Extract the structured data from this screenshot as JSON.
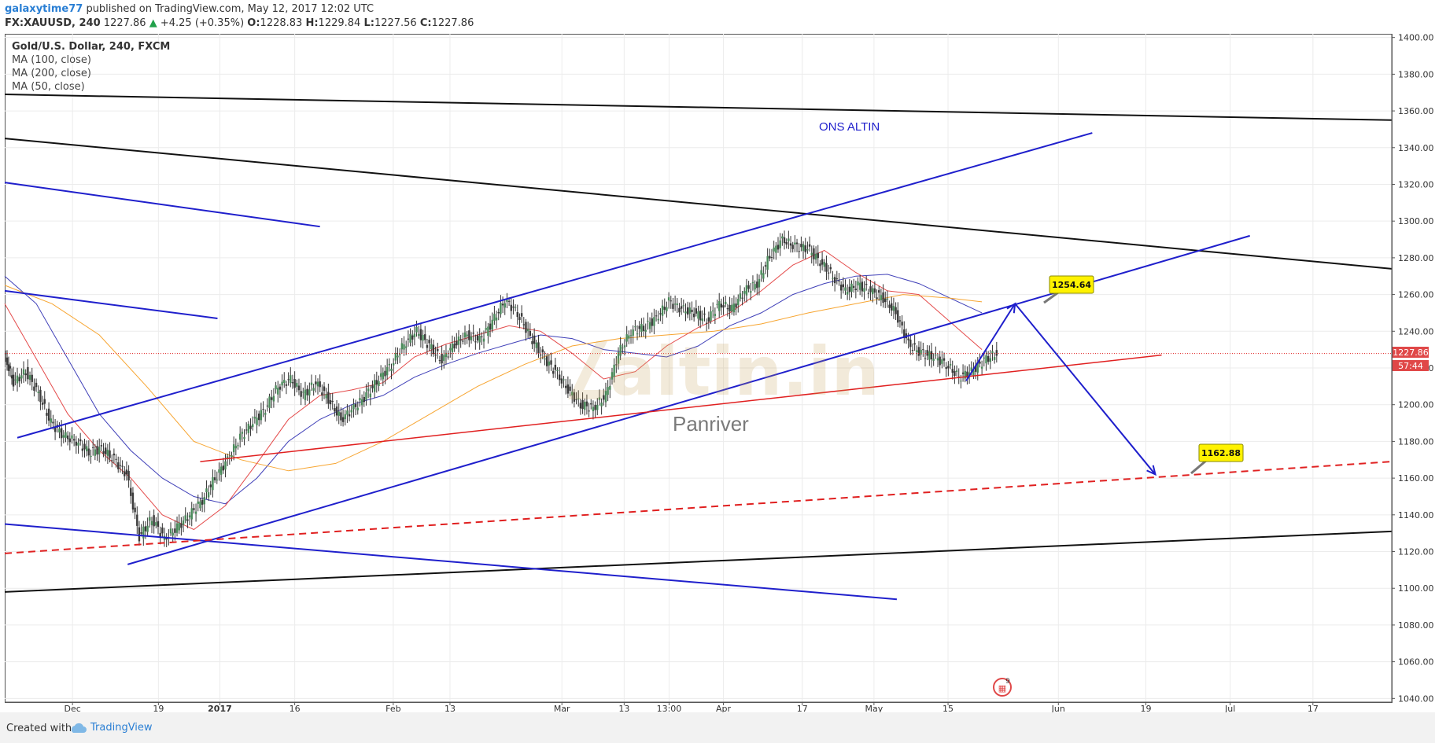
{
  "header": {
    "author": "galaxytime77",
    "published_text": "published on TradingView.com, May 12, 2017 12:02 UTC",
    "symbol": "FX:XAUUSD, 240",
    "last_price": "1227.86",
    "change_arrow": "▲",
    "change": "+4.25 (+0.35%)",
    "open_label": "O:",
    "open": "1228.83",
    "high_label": "H:",
    "high": "1229.84",
    "low_label": "L:",
    "low": "1227.56",
    "close_label": "C:",
    "close": "1227.86"
  },
  "legend": {
    "title": "Gold/U.S. Dollar, 240, FXCM",
    "ma1": "MA (100, close)",
    "ma2": "MA (200, close)",
    "ma3": "MA (50, close)"
  },
  "annotations": {
    "title_text": "ONS ALTIN",
    "watermark_brand": "altin.in",
    "watermark_sub": "Panriver",
    "callout_high": "1254.64",
    "callout_low": "1162.88",
    "price_tag": "1227.86",
    "countdown_tag": "57:44",
    "event_badge": "9"
  },
  "footer": {
    "created_with": "Created with",
    "brand": "TradingView"
  },
  "chart_data": {
    "type": "candlestick",
    "symbol": "FX:XAUUSD",
    "timeframe": "240",
    "y_ticks": [
      1040,
      1060,
      1080,
      1100,
      1120,
      1140,
      1160,
      1180,
      1200,
      1220,
      1240,
      1260,
      1280,
      1300,
      1320,
      1340,
      1360,
      1380,
      1400
    ],
    "y_tick_labels": [
      "1040.00",
      "1060.00",
      "1080.00",
      "1100.00",
      "1120.00",
      "1140.00",
      "1160.00",
      "1180.00",
      "1200.00",
      "1220.00",
      "1240.00",
      "1260.00",
      "1280.00",
      "1300.00",
      "1320.00",
      "1340.00",
      "1360.00",
      "1380.00",
      "1400.00"
    ],
    "ylim": [
      1038,
      1402
    ],
    "x_labels": [
      "Dec",
      "19",
      "2017",
      "16",
      "Feb",
      "13",
      "Mar",
      "13",
      "13:00",
      "Apr",
      "17",
      "May",
      "15",
      "Jun",
      "19",
      "Jul",
      "17"
    ],
    "x_label_bold": [
      false,
      false,
      true,
      false,
      false,
      false,
      false,
      false,
      false,
      false,
      false,
      false,
      false,
      false,
      false,
      false,
      false
    ],
    "price_path": [
      [
        0,
        1228
      ],
      [
        0.6,
        1212
      ],
      [
        1.4,
        1218
      ],
      [
        2.2,
        1206
      ],
      [
        3.0,
        1190
      ],
      [
        3.8,
        1183
      ],
      [
        4.6,
        1180
      ],
      [
        5.4,
        1174
      ],
      [
        6.2,
        1176
      ],
      [
        7.0,
        1170
      ],
      [
        7.8,
        1162
      ],
      [
        8.6,
        1128
      ],
      [
        9.4,
        1138
      ],
      [
        10.2,
        1127
      ],
      [
        11.0,
        1133
      ],
      [
        11.8,
        1140
      ],
      [
        12.6,
        1148
      ],
      [
        13.4,
        1160
      ],
      [
        14.2,
        1170
      ],
      [
        15.0,
        1182
      ],
      [
        15.8,
        1190
      ],
      [
        16.6,
        1198
      ],
      [
        17.4,
        1210
      ],
      [
        18.2,
        1214
      ],
      [
        19.0,
        1205
      ],
      [
        19.8,
        1212
      ],
      [
        20.6,
        1203
      ],
      [
        21.4,
        1192
      ],
      [
        22.2,
        1198
      ],
      [
        23.0,
        1205
      ],
      [
        23.8,
        1214
      ],
      [
        24.6,
        1222
      ],
      [
        25.4,
        1233
      ],
      [
        26.2,
        1240
      ],
      [
        27.0,
        1232
      ],
      [
        27.8,
        1224
      ],
      [
        28.6,
        1233
      ],
      [
        29.4,
        1238
      ],
      [
        30.2,
        1235
      ],
      [
        31.0,
        1245
      ],
      [
        31.8,
        1257
      ],
      [
        32.6,
        1250
      ],
      [
        33.4,
        1237
      ],
      [
        34.2,
        1226
      ],
      [
        35.0,
        1218
      ],
      [
        35.8,
        1208
      ],
      [
        36.6,
        1200
      ],
      [
        37.4,
        1198
      ],
      [
        38.2,
        1205
      ],
      [
        39.0,
        1228
      ],
      [
        39.8,
        1240
      ],
      [
        40.6,
        1242
      ],
      [
        41.4,
        1247
      ],
      [
        42.2,
        1256
      ],
      [
        43.0,
        1252
      ],
      [
        43.8,
        1250
      ],
      [
        44.6,
        1246
      ],
      [
        45.4,
        1255
      ],
      [
        46.2,
        1252
      ],
      [
        47.0,
        1262
      ],
      [
        47.8,
        1266
      ],
      [
        48.6,
        1281
      ],
      [
        49.4,
        1290
      ],
      [
        50.2,
        1286
      ],
      [
        51.0,
        1285
      ],
      [
        51.8,
        1278
      ],
      [
        52.6,
        1270
      ],
      [
        53.4,
        1262
      ],
      [
        54.2,
        1265
      ],
      [
        55.0,
        1262
      ],
      [
        55.8,
        1258
      ],
      [
        56.6,
        1250
      ],
      [
        57.4,
        1233
      ],
      [
        58.2,
        1228
      ],
      [
        59.0,
        1226
      ],
      [
        59.8,
        1222
      ],
      [
        60.6,
        1215
      ],
      [
        61.4,
        1218
      ],
      [
        62.2,
        1224
      ],
      [
        63.0,
        1228
      ]
    ],
    "moving_averages": [
      {
        "name": "MA (100, close)",
        "color": "#3f3fb8",
        "points": [
          [
            0,
            1270
          ],
          [
            2,
            1255
          ],
          [
            4,
            1225
          ],
          [
            6,
            1195
          ],
          [
            8,
            1175
          ],
          [
            10,
            1160
          ],
          [
            12,
            1150
          ],
          [
            14,
            1146
          ],
          [
            16,
            1160
          ],
          [
            18,
            1180
          ],
          [
            20,
            1192
          ],
          [
            22,
            1200
          ],
          [
            24,
            1205
          ],
          [
            26,
            1215
          ],
          [
            28,
            1222
          ],
          [
            30,
            1228
          ],
          [
            32,
            1233
          ],
          [
            34,
            1238
          ],
          [
            36,
            1236
          ],
          [
            38,
            1230
          ],
          [
            40,
            1228
          ],
          [
            42,
            1226
          ],
          [
            44,
            1232
          ],
          [
            46,
            1243
          ],
          [
            48,
            1250
          ],
          [
            50,
            1260
          ],
          [
            52,
            1266
          ],
          [
            54,
            1270
          ],
          [
            56,
            1271
          ],
          [
            58,
            1266
          ],
          [
            60,
            1258
          ],
          [
            62,
            1250
          ]
        ]
      },
      {
        "name": "MA (200, close)",
        "color": "#f7a531",
        "points": [
          [
            0,
            1265
          ],
          [
            3,
            1255
          ],
          [
            6,
            1238
          ],
          [
            9,
            1210
          ],
          [
            12,
            1180
          ],
          [
            15,
            1170
          ],
          [
            18,
            1164
          ],
          [
            21,
            1168
          ],
          [
            24,
            1180
          ],
          [
            27,
            1195
          ],
          [
            30,
            1210
          ],
          [
            33,
            1222
          ],
          [
            36,
            1232
          ],
          [
            39,
            1236
          ],
          [
            42,
            1238
          ],
          [
            45,
            1240
          ],
          [
            48,
            1244
          ],
          [
            51,
            1250
          ],
          [
            54,
            1255
          ],
          [
            57,
            1260
          ],
          [
            60,
            1258
          ],
          [
            62,
            1256
          ]
        ]
      },
      {
        "name": "MA (50, close)",
        "color": "#e44b4b",
        "points": [
          [
            0,
            1255
          ],
          [
            2,
            1225
          ],
          [
            4,
            1195
          ],
          [
            6,
            1175
          ],
          [
            8,
            1160
          ],
          [
            10,
            1140
          ],
          [
            12,
            1132
          ],
          [
            14,
            1145
          ],
          [
            16,
            1168
          ],
          [
            18,
            1192
          ],
          [
            20,
            1205
          ],
          [
            22,
            1208
          ],
          [
            24,
            1212
          ],
          [
            26,
            1226
          ],
          [
            28,
            1233
          ],
          [
            30,
            1238
          ],
          [
            32,
            1243
          ],
          [
            34,
            1240
          ],
          [
            36,
            1228
          ],
          [
            38,
            1214
          ],
          [
            40,
            1218
          ],
          [
            42,
            1232
          ],
          [
            44,
            1242
          ],
          [
            46,
            1250
          ],
          [
            48,
            1262
          ],
          [
            50,
            1276
          ],
          [
            52,
            1284
          ],
          [
            54,
            1272
          ],
          [
            56,
            1262
          ],
          [
            58,
            1260
          ],
          [
            60,
            1245
          ],
          [
            62,
            1230
          ]
        ]
      }
    ],
    "trendlines": [
      {
        "color": "#111111",
        "width": 2,
        "dash": false,
        "points": [
          [
            0,
            1369
          ],
          [
            88,
            1355
          ]
        ]
      },
      {
        "color": "#111111",
        "width": 2,
        "dash": false,
        "points": [
          [
            0,
            1345
          ],
          [
            88,
            1274
          ]
        ]
      },
      {
        "color": "#111111",
        "width": 2,
        "dash": false,
        "points": [
          [
            0,
            1098
          ],
          [
            88,
            1131
          ]
        ]
      },
      {
        "color": "#1f1fcc",
        "width": 2,
        "dash": false,
        "points": [
          [
            0,
            1321
          ],
          [
            20,
            1297
          ]
        ]
      },
      {
        "color": "#1f1fcc",
        "width": 2,
        "dash": false,
        "points": [
          [
            0,
            1262
          ],
          [
            13.5,
            1247
          ]
        ]
      },
      {
        "color": "#1f1fcc",
        "width": 2,
        "dash": false,
        "points": [
          [
            0.8,
            1182
          ],
          [
            69,
            1348
          ]
        ]
      },
      {
        "color": "#1f1fcc",
        "width": 2,
        "dash": false,
        "points": [
          [
            7.8,
            1113
          ],
          [
            79,
            1292
          ]
        ]
      },
      {
        "color": "#1f1fcc",
        "width": 2,
        "dash": false,
        "points": [
          [
            0,
            1135
          ],
          [
            56.6,
            1094
          ]
        ]
      },
      {
        "color": "#e02020",
        "width": 1.5,
        "dash": false,
        "points": [
          [
            12.4,
            1169
          ],
          [
            73.4,
            1227
          ]
        ]
      },
      {
        "color": "#e02020",
        "width": 2,
        "dash": true,
        "points": [
          [
            0,
            1119
          ],
          [
            88,
            1169
          ]
        ]
      }
    ],
    "arrows": [
      {
        "color": "#1f1fcc",
        "from": [
          61,
          1213
        ],
        "to": [
          64.1,
          1255
        ]
      },
      {
        "color": "#1f1fcc",
        "from": [
          64.1,
          1255
        ],
        "to": [
          73,
          1162
        ]
      }
    ],
    "price_line": {
      "value": 1227.86,
      "color": "#e02020"
    }
  }
}
